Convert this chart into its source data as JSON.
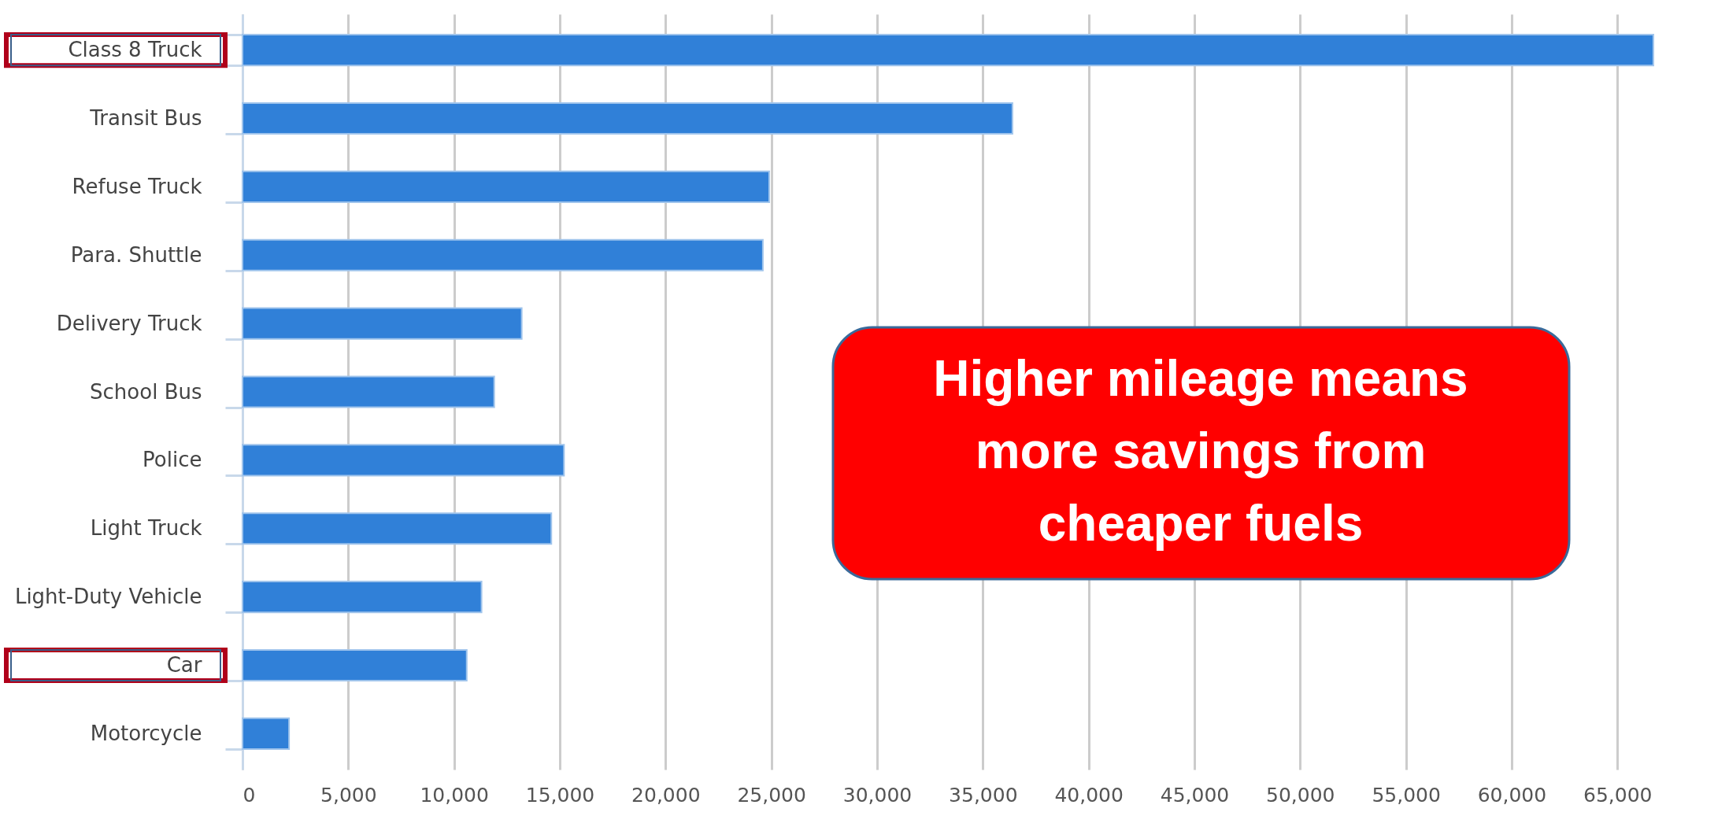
{
  "chart_data": {
    "type": "bar",
    "orientation": "horizontal",
    "categories": [
      "Class 8 Truck",
      "Transit Bus",
      "Refuse Truck",
      "Para. Shuttle",
      "Delivery Truck",
      "School Bus",
      "Police",
      "Light Truck",
      "Light-Duty Vehicle",
      "Car",
      "Motorcycle"
    ],
    "values": [
      66700,
      36400,
      24900,
      24600,
      13200,
      11900,
      15200,
      14600,
      11300,
      10600,
      2200
    ],
    "color": "#3080d8",
    "xlim": [
      0,
      67000
    ],
    "xticks": [
      0,
      {
        "value": 5000,
        "label": "5,000"
      },
      {
        "value": 10000,
        "label": "10,000"
      },
      {
        "value": 15000,
        "label": "15,000"
      },
      {
        "value": 20000,
        "label": "20,000"
      },
      {
        "value": 25000,
        "label": "25,000"
      },
      {
        "value": 30000,
        "label": "30,000"
      },
      {
        "value": 35000,
        "label": "35,000"
      },
      {
        "value": 40000,
        "label": "40,000"
      },
      {
        "value": 45000,
        "label": "45,000"
      },
      {
        "value": 50000,
        "label": "50,000"
      },
      {
        "value": 55000,
        "label": "55,000"
      },
      {
        "value": 60000,
        "label": "60,000"
      },
      {
        "value": 65000,
        "label": "65,000"
      }
    ],
    "grid": "x",
    "annotations": [
      "Higher mileage means more savings from cheaper fuels"
    ]
  }
}
